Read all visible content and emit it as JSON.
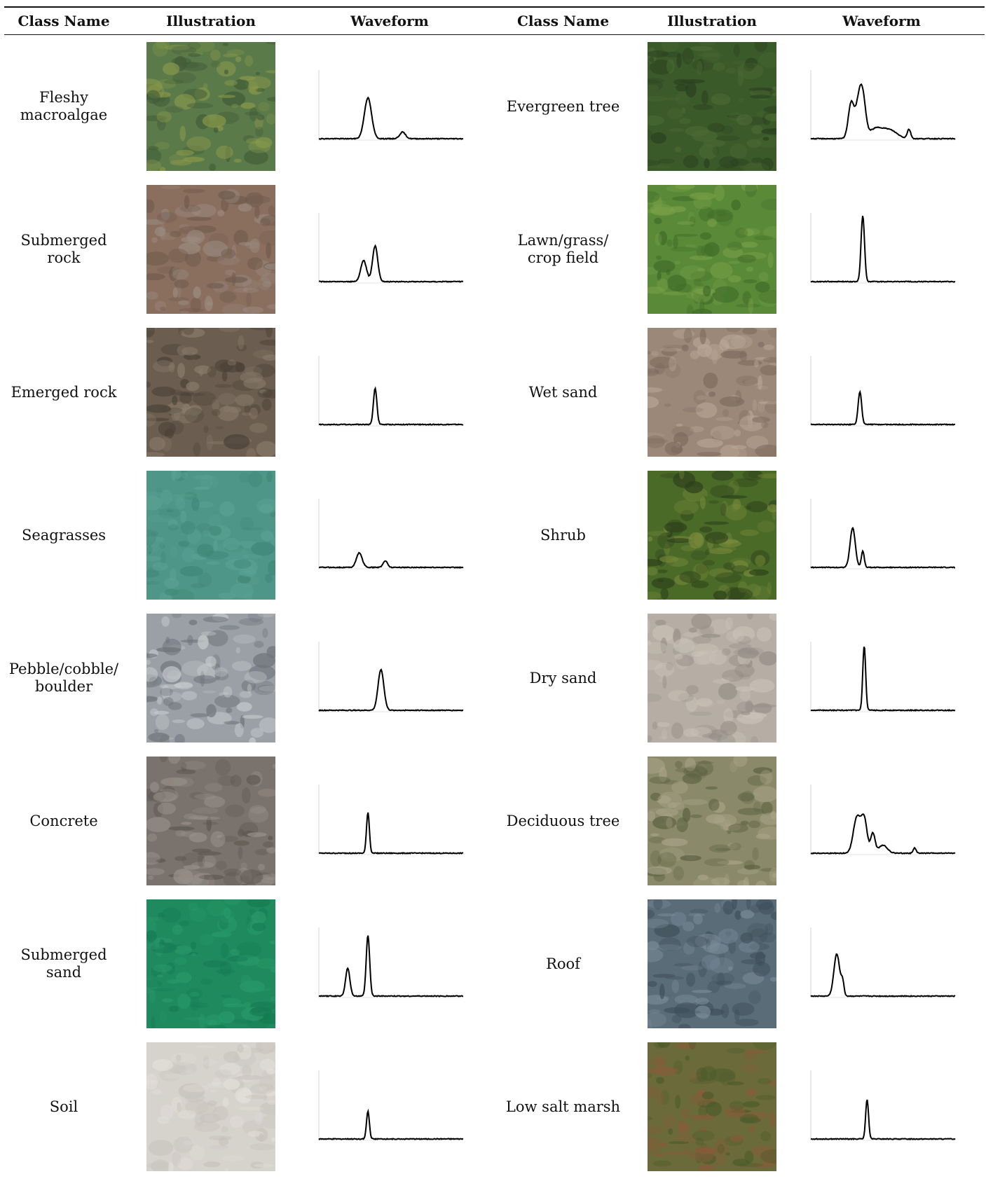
{
  "header": {
    "class_name": "Class Name",
    "illustration": "Illustration",
    "waveform": "Waveform"
  },
  "rows": [
    {
      "left": {
        "name": [
          "Fleshy",
          "macroalgae"
        ],
        "img": "fleshy-macroalgae",
        "peaks": [
          [
            0.34,
            0.62,
            0.025
          ],
          [
            0.58,
            0.1,
            0.02
          ]
        ],
        "colors": [
          "#5b7a4a",
          "#8c9a4a",
          "#3f5a36"
        ]
      },
      "right": {
        "name": [
          "Evergreen tree"
        ],
        "img": "evergreen-tree",
        "peaks": [
          [
            0.28,
            0.55,
            0.02
          ],
          [
            0.33,
            0.48,
            0.02
          ],
          [
            0.36,
            0.58,
            0.02
          ],
          [
            0.45,
            0.15,
            0.05
          ],
          [
            0.55,
            0.12,
            0.05
          ],
          [
            0.68,
            0.14,
            0.012
          ]
        ],
        "colors": [
          "#3b5a2a",
          "#4c6b33",
          "#2a4020"
        ]
      }
    },
    {
      "left": {
        "name": [
          "Submerged",
          "rock"
        ],
        "img": "submerged-rock",
        "peaks": [
          [
            0.31,
            0.32,
            0.02
          ],
          [
            0.39,
            0.54,
            0.018
          ]
        ],
        "colors": [
          "#8a6e5e",
          "#9c8f86",
          "#6e5a4c"
        ]
      },
      "right": {
        "name": [
          "Lawn/grass/",
          "crop field"
        ],
        "img": "lawn-grass",
        "peaks": [
          [
            0.36,
            1.0,
            0.012
          ]
        ],
        "colors": [
          "#5a8a38",
          "#7aa048",
          "#3f6a28"
        ]
      }
    },
    {
      "left": {
        "name": [
          "Emerged rock"
        ],
        "img": "emerged-rock",
        "peaks": [
          [
            0.39,
            0.55,
            0.012
          ]
        ],
        "colors": [
          "#6b5e50",
          "#8a7c6c",
          "#4a4036"
        ]
      },
      "right": {
        "name": [
          "Wet sand"
        ],
        "img": "wet-sand",
        "peaks": [
          [
            0.34,
            0.5,
            0.012
          ]
        ],
        "colors": [
          "#9c8878",
          "#b8a696",
          "#7c6a5c"
        ]
      }
    },
    {
      "left": {
        "name": [
          "Seagrasses"
        ],
        "img": "seagrasses",
        "peaks": [
          [
            0.28,
            0.22,
            0.02
          ],
          [
            0.46,
            0.1,
            0.015
          ]
        ],
        "colors": [
          "#4e9688",
          "#5aa294",
          "#3e8676"
        ]
      },
      "right": {
        "name": [
          "Shrub"
        ],
        "img": "shrub",
        "peaks": [
          [
            0.29,
            0.6,
            0.018
          ],
          [
            0.36,
            0.25,
            0.01
          ]
        ],
        "colors": [
          "#4a6a28",
          "#7a8a3a",
          "#2c3e1a"
        ]
      }
    },
    {
      "left": {
        "name": [
          "Pebble/cobble/",
          "boulder"
        ],
        "img": "pebble",
        "peaks": [
          [
            0.43,
            0.62,
            0.02
          ]
        ],
        "colors": [
          "#9aa0a6",
          "#c8ccce",
          "#6c7278"
        ]
      },
      "right": {
        "name": [
          "Dry sand"
        ],
        "img": "dry-sand",
        "peaks": [
          [
            0.37,
            0.98,
            0.01
          ]
        ],
        "colors": [
          "#b6aea4",
          "#cac2b8",
          "#948c84"
        ]
      }
    },
    {
      "left": {
        "name": [
          "Concrete"
        ],
        "img": "concrete",
        "peaks": [
          [
            0.34,
            0.62,
            0.01
          ]
        ],
        "colors": [
          "#7a726c",
          "#9a928c",
          "#5c5650"
        ]
      },
      "right": {
        "name": [
          "Deciduous tree"
        ],
        "img": "deciduous-tree",
        "peaks": [
          [
            0.32,
            0.55,
            0.025
          ],
          [
            0.37,
            0.5,
            0.02
          ],
          [
            0.43,
            0.3,
            0.015
          ],
          [
            0.5,
            0.12,
            0.03
          ],
          [
            0.72,
            0.08,
            0.01
          ]
        ],
        "colors": [
          "#8a8a6a",
          "#aaa48a",
          "#5a6040"
        ]
      }
    },
    {
      "left": {
        "name": [
          "Submerged",
          "sand"
        ],
        "img": "submerged-sand",
        "peaks": [
          [
            0.2,
            0.42,
            0.015
          ],
          [
            0.34,
            0.92,
            0.012
          ]
        ],
        "colors": [
          "#1e8a5e",
          "#2a9a6a",
          "#167a52"
        ]
      },
      "right": {
        "name": [
          "Roof"
        ],
        "img": "roof",
        "peaks": [
          [
            0.18,
            0.64,
            0.02
          ],
          [
            0.22,
            0.2,
            0.01
          ]
        ],
        "colors": [
          "#5a6c78",
          "#7a8c98",
          "#3e4e5a"
        ]
      }
    },
    {
      "left": {
        "name": [
          "Soil"
        ],
        "img": "soil",
        "peaks": [
          [
            0.34,
            0.42,
            0.01
          ]
        ],
        "colors": [
          "#d6d2cc",
          "#e4e0da",
          "#c6c2bc"
        ]
      },
      "right": {
        "name": [
          "Low salt marsh"
        ],
        "img": "low-salt-marsh",
        "peaks": [
          [
            0.39,
            0.6,
            0.01
          ]
        ],
        "colors": [
          "#6a6a3a",
          "#8a5a3a",
          "#4a5a2a"
        ]
      }
    }
  ]
}
